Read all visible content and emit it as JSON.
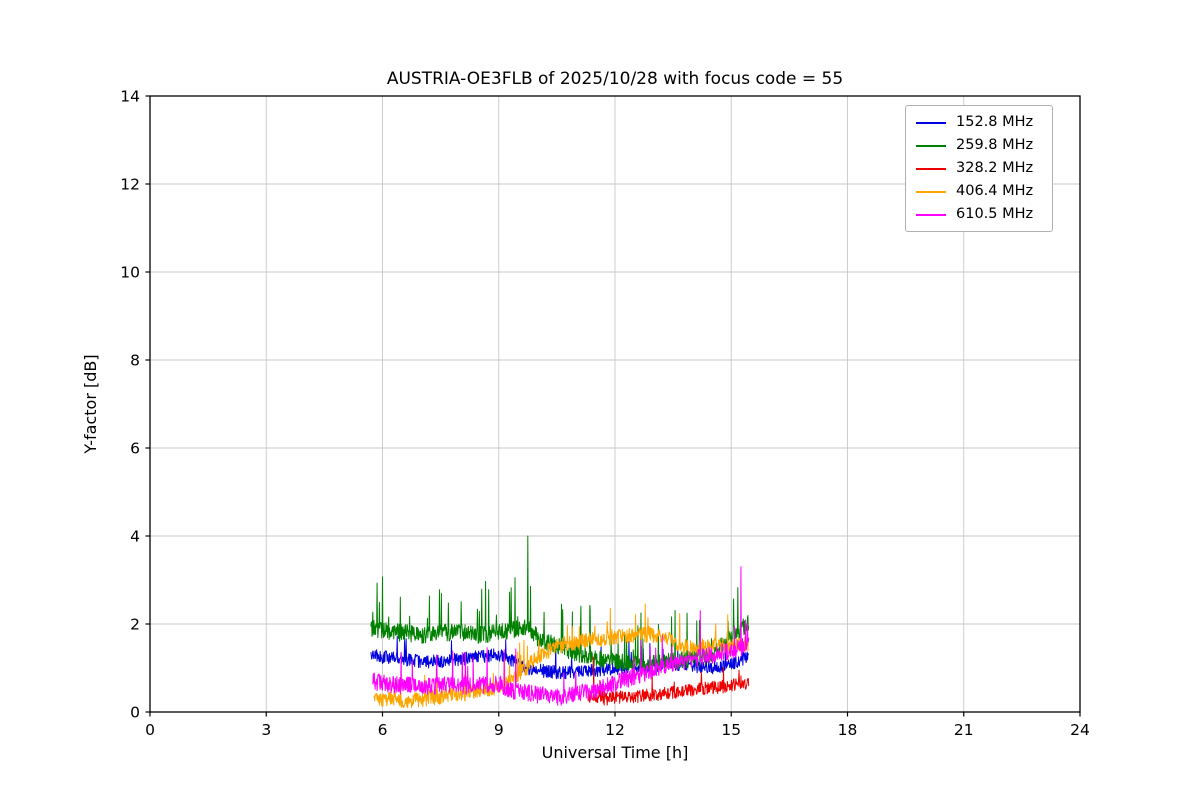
{
  "chart_data": {
    "type": "line",
    "title": "AUSTRIA-OE3FLB of 2025/10/28 with focus code = 55",
    "xlabel": "Universal Time [h]",
    "ylabel": "Y-factor [dB]",
    "xlim": [
      0,
      24
    ],
    "ylim": [
      0,
      14
    ],
    "xticks": [
      0,
      3,
      6,
      9,
      12,
      15,
      18,
      21,
      24
    ],
    "yticks": [
      0,
      2,
      4,
      6,
      8,
      10,
      12,
      14
    ],
    "grid": true,
    "grid_color": "#c8c8c8",
    "legend_position": "upper right",
    "series": [
      {
        "name": "152.8 MHz",
        "color": "#0000e0",
        "x_range": [
          5.7,
          15.45
        ],
        "anchors": [
          [
            5.7,
            1.3
          ],
          [
            6.0,
            1.25
          ],
          [
            6.5,
            1.2
          ],
          [
            7.0,
            1.15
          ],
          [
            7.5,
            1.15
          ],
          [
            8.0,
            1.2
          ],
          [
            8.5,
            1.25
          ],
          [
            9.0,
            1.3
          ],
          [
            9.3,
            1.2
          ],
          [
            9.7,
            1.0
          ],
          [
            10.0,
            0.95
          ],
          [
            10.5,
            0.9
          ],
          [
            11.0,
            0.9
          ],
          [
            11.5,
            0.95
          ],
          [
            12.0,
            1.0
          ],
          [
            12.5,
            1.0
          ],
          [
            13.0,
            1.05
          ],
          [
            13.5,
            1.1
          ],
          [
            14.0,
            1.05
          ],
          [
            14.5,
            1.0
          ],
          [
            15.0,
            1.1
          ],
          [
            15.4,
            1.25
          ]
        ],
        "noise": 0.15,
        "spike_prob": 0.02,
        "spike_amp": 0.4,
        "events": []
      },
      {
        "name": "259.8 MHz",
        "color": "#008000",
        "x_range": [
          5.7,
          15.45
        ],
        "anchors": [
          [
            5.7,
            1.9
          ],
          [
            6.0,
            1.85
          ],
          [
            6.5,
            1.8
          ],
          [
            7.0,
            1.75
          ],
          [
            7.5,
            1.8
          ],
          [
            8.0,
            1.8
          ],
          [
            8.5,
            1.75
          ],
          [
            9.0,
            1.8
          ],
          [
            9.5,
            1.9
          ],
          [
            9.75,
            1.95
          ],
          [
            10.0,
            1.7
          ],
          [
            10.5,
            1.5
          ],
          [
            11.0,
            1.35
          ],
          [
            11.5,
            1.2
          ],
          [
            12.0,
            1.15
          ],
          [
            12.5,
            1.1
          ],
          [
            13.0,
            1.1
          ],
          [
            13.5,
            1.15
          ],
          [
            14.0,
            1.2
          ],
          [
            14.5,
            1.3
          ],
          [
            15.0,
            1.7
          ],
          [
            15.4,
            2.0
          ]
        ],
        "noise": 0.2,
        "spike_prob": 0.05,
        "spike_amp": 0.8,
        "events": [
          [
            9.75,
            4.0
          ]
        ]
      },
      {
        "name": "328.2 MHz",
        "color": "#ee0000",
        "x_range": [
          11.3,
          15.45
        ],
        "anchors": [
          [
            11.3,
            0.35
          ],
          [
            11.7,
            0.3
          ],
          [
            12.0,
            0.32
          ],
          [
            12.5,
            0.35
          ],
          [
            13.0,
            0.4
          ],
          [
            13.5,
            0.45
          ],
          [
            14.0,
            0.5
          ],
          [
            14.5,
            0.55
          ],
          [
            15.0,
            0.6
          ],
          [
            15.4,
            0.65
          ]
        ],
        "noise": 0.15,
        "spike_prob": 0.015,
        "spike_amp": 0.35,
        "events": [
          [
            11.45,
            1.25
          ],
          [
            15.2,
            0.95
          ]
        ]
      },
      {
        "name": "406.4 MHz",
        "color": "#ffa500",
        "x_range": [
          5.78,
          15.45
        ],
        "anchors": [
          [
            5.78,
            0.35
          ],
          [
            6.0,
            0.3
          ],
          [
            6.5,
            0.25
          ],
          [
            7.0,
            0.3
          ],
          [
            7.5,
            0.35
          ],
          [
            8.0,
            0.4
          ],
          [
            8.5,
            0.5
          ],
          [
            9.0,
            0.55
          ],
          [
            9.3,
            0.7
          ],
          [
            9.7,
            1.0
          ],
          [
            10.0,
            1.25
          ],
          [
            10.5,
            1.5
          ],
          [
            11.0,
            1.6
          ],
          [
            11.5,
            1.65
          ],
          [
            12.0,
            1.7
          ],
          [
            12.5,
            1.75
          ],
          [
            13.0,
            1.75
          ],
          [
            13.3,
            1.7
          ],
          [
            13.7,
            1.5
          ],
          [
            14.0,
            1.45
          ],
          [
            14.5,
            1.5
          ],
          [
            15.0,
            1.5
          ],
          [
            15.4,
            1.55
          ]
        ],
        "noise": 0.18,
        "spike_prob": 0.03,
        "spike_amp": 0.5,
        "events": []
      },
      {
        "name": "610.5 MHz",
        "color": "#ff00ff",
        "x_range": [
          5.75,
          15.45
        ],
        "anchors": [
          [
            5.75,
            0.7
          ],
          [
            6.0,
            0.65
          ],
          [
            6.5,
            0.6
          ],
          [
            7.0,
            0.6
          ],
          [
            7.5,
            0.6
          ],
          [
            8.0,
            0.6
          ],
          [
            8.5,
            0.6
          ],
          [
            9.0,
            0.65
          ],
          [
            9.3,
            0.5
          ],
          [
            9.7,
            0.45
          ],
          [
            10.0,
            0.4
          ],
          [
            10.3,
            0.35
          ],
          [
            10.7,
            0.35
          ],
          [
            11.0,
            0.4
          ],
          [
            11.5,
            0.5
          ],
          [
            12.0,
            0.65
          ],
          [
            12.5,
            0.8
          ],
          [
            13.0,
            0.95
          ],
          [
            13.5,
            1.1
          ],
          [
            14.0,
            1.2
          ],
          [
            14.5,
            1.3
          ],
          [
            15.0,
            1.4
          ],
          [
            15.4,
            1.5
          ]
        ],
        "noise": 0.2,
        "spike_prob": 0.025,
        "spike_amp": 0.7,
        "events": [
          [
            14.2,
            2.3
          ],
          [
            15.25,
            3.3
          ]
        ]
      }
    ]
  }
}
